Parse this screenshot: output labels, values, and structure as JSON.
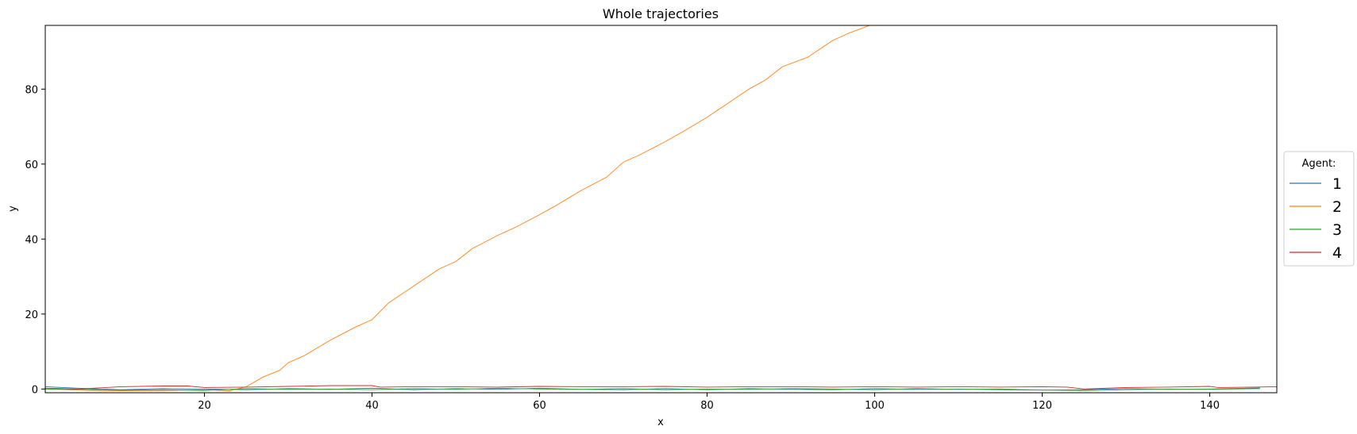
{
  "chart_data": {
    "type": "line",
    "title": "Whole trajectories",
    "xlabel": "x",
    "ylabel": "y",
    "xlim": [
      1,
      148
    ],
    "ylim": [
      -1,
      97
    ],
    "xticks": [
      20,
      40,
      60,
      80,
      100,
      120,
      140
    ],
    "yticks": [
      0,
      20,
      40,
      60,
      80
    ],
    "grid": false,
    "legend": {
      "title": "Agent:",
      "placement": "right"
    },
    "series": [
      {
        "name": "1",
        "color": "#1f77b4",
        "x": [
          1,
          5,
          10,
          15,
          20,
          25,
          30,
          35,
          40,
          45,
          50,
          55,
          60,
          65,
          70,
          75,
          80,
          85,
          90,
          95,
          100,
          105,
          110,
          115,
          120,
          125,
          130,
          135,
          140,
          146
        ],
        "y": [
          0.6,
          0.2,
          -0.2,
          0.1,
          0.0,
          -0.2,
          0.1,
          -0.1,
          0.2,
          -0.2,
          0.1,
          -0.1,
          0.2,
          -0.1,
          -0.2,
          0.1,
          -0.2,
          0.1,
          -0.1,
          -0.2,
          0.1,
          -0.1,
          0.0,
          -0.2,
          -0.3,
          -0.2,
          0.1,
          -0.1,
          0.0,
          0.3
        ]
      },
      {
        "name": "2",
        "color": "#ff7f0e",
        "x": [
          1,
          5,
          10,
          15,
          20,
          23,
          25,
          27,
          29,
          30,
          32,
          35,
          38,
          40,
          42,
          45,
          48,
          50,
          52,
          55,
          57,
          60,
          62,
          65,
          68,
          70,
          72,
          75,
          77,
          80,
          82,
          85,
          87,
          89,
          92,
          95,
          97,
          100
        ],
        "y": [
          0.0,
          -0.3,
          -0.5,
          -0.4,
          -0.2,
          -0.5,
          0.6,
          3.2,
          5.0,
          7.0,
          9.0,
          13.0,
          16.5,
          18.5,
          23.0,
          27.5,
          32.0,
          34.0,
          37.5,
          41.0,
          43.0,
          46.5,
          49.0,
          53.0,
          56.5,
          60.5,
          62.5,
          66.0,
          68.5,
          72.5,
          75.5,
          80.0,
          82.5,
          86.0,
          88.5,
          93.0,
          95.0,
          97.5
        ]
      },
      {
        "name": "3",
        "color": "#2ca02c",
        "x": [
          1,
          5,
          10,
          15,
          20,
          25,
          30,
          35,
          40,
          45,
          50,
          55,
          60,
          65,
          70,
          75,
          80,
          85,
          90,
          95,
          100,
          105,
          110,
          115,
          120,
          125,
          130,
          135,
          140,
          146
        ],
        "y": [
          0.0,
          -0.1,
          -0.3,
          -0.2,
          -0.4,
          0.1,
          -0.1,
          0.0,
          -0.2,
          0.1,
          -0.1,
          0.2,
          0.0,
          -0.1,
          0.1,
          -0.2,
          0.0,
          -0.1,
          0.1,
          0.0,
          -0.2,
          0.1,
          -0.1,
          0.0,
          -0.3,
          -0.4,
          -0.2,
          0.0,
          -0.1,
          0.1
        ]
      },
      {
        "name": "4",
        "color": "#d62728",
        "x": [
          1,
          5,
          10,
          15,
          18,
          20,
          25,
          30,
          35,
          40,
          41,
          45,
          50,
          55,
          60,
          65,
          70,
          75,
          80,
          85,
          90,
          95,
          100,
          105,
          110,
          115,
          120,
          123,
          125,
          130,
          135,
          140,
          141,
          145,
          148
        ],
        "y": [
          0.2,
          0.0,
          0.6,
          0.8,
          0.8,
          0.4,
          0.5,
          0.7,
          0.9,
          0.9,
          0.5,
          0.6,
          0.6,
          0.5,
          0.7,
          0.6,
          0.6,
          0.7,
          0.5,
          0.6,
          0.6,
          0.5,
          0.6,
          0.5,
          0.6,
          0.5,
          0.6,
          0.5,
          0.0,
          0.4,
          0.5,
          0.7,
          0.4,
          0.5,
          0.6
        ]
      }
    ]
  }
}
